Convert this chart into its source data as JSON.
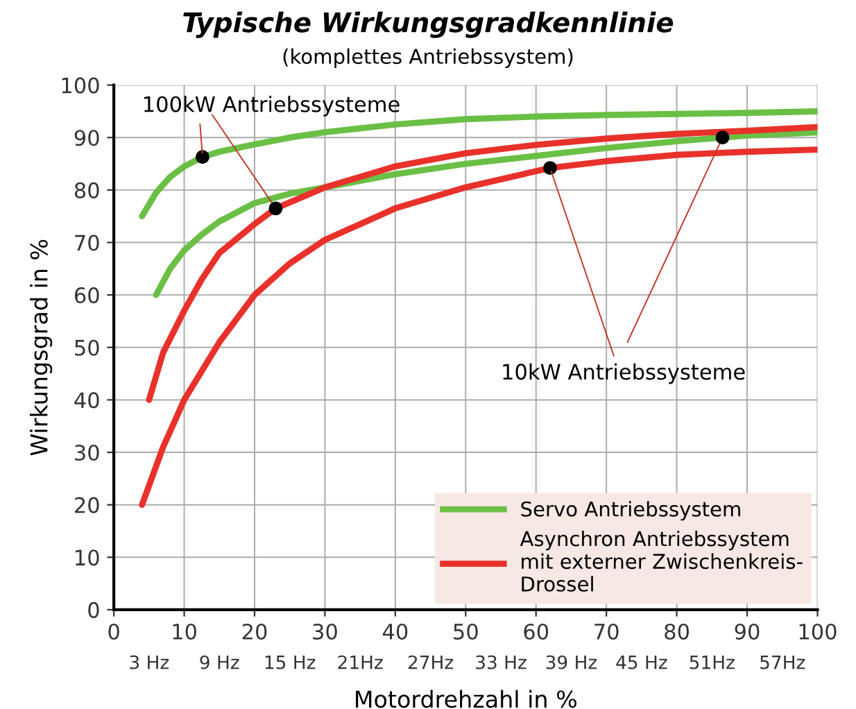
{
  "chart_data": {
    "type": "line",
    "title": "Typische Wirkungsgradkennlinie",
    "subtitle": "(komplettes Antriebssystem)",
    "xlabel": "Motordrehzahl in %",
    "ylabel": "Wirkungsgrad in %",
    "series": [
      {
        "name": "Servo Antriebssystem",
        "color": "#6abf45",
        "x": [
          4,
          6,
          8,
          10,
          12.6,
          15,
          20,
          25,
          30,
          40,
          50,
          60,
          70,
          80,
          90,
          100
        ],
        "values": [
          75,
          79.5,
          82.5,
          84.5,
          86.3,
          87.3,
          88.7,
          90,
          91,
          92.5,
          93.5,
          94,
          94.3,
          94.5,
          94.7,
          95
        ]
      },
      {
        "color": "#6abf45",
        "x": [
          6,
          8,
          10,
          12.5,
          15,
          20,
          25,
          30,
          40,
          50,
          60,
          70,
          80,
          86.5,
          90,
          100
        ],
        "values": [
          60,
          65,
          68.5,
          71.5,
          74,
          77.5,
          79.3,
          80.5,
          83,
          85,
          86.5,
          88,
          89.3,
          90,
          90.4,
          91
        ]
      },
      {
        "name": "Asynchron Antriebssystem\nmit externer Zwischenkreis-\nDrossel",
        "color": "#e8312a",
        "x": [
          5,
          7,
          10,
          12.5,
          15,
          20,
          23,
          30,
          40,
          50,
          60,
          70,
          80,
          90,
          100
        ],
        "values": [
          40,
          49,
          57,
          63,
          68,
          73.5,
          76.5,
          80.5,
          84.5,
          87,
          88.6,
          89.8,
          90.7,
          91.3,
          92
        ]
      },
      {
        "color": "#e8312a",
        "x": [
          4,
          7,
          10,
          15,
          20,
          25,
          30,
          40,
          50,
          62,
          70,
          80,
          90,
          100
        ],
        "values": [
          20,
          31,
          40,
          51,
          60,
          66,
          70.5,
          76.5,
          80.5,
          84.2,
          85.5,
          86.7,
          87.3,
          87.7
        ]
      },
      {
        "type": "scatter",
        "marker": "circle",
        "color": "#000000",
        "x": [
          12.6,
          23,
          62,
          86.5
        ],
        "values": [
          86.3,
          76.5,
          84.2,
          90
        ]
      }
    ],
    "annotations": [
      {
        "text": "100kW Antriebssysteme",
        "x": 12.6,
        "y": 86.3
      },
      {
        "text": "10kW Antriebssysteme",
        "x": 62,
        "y": 84.2
      }
    ],
    "xlim": [
      0,
      100
    ],
    "xticks": [
      0,
      10,
      20,
      30,
      40,
      50,
      60,
      70,
      80,
      90,
      100
    ],
    "x2lim": [
      0,
      60
    ],
    "x2ticks": [
      {
        "value": 3,
        "label": "3 Hz"
      },
      {
        "value": 9,
        "label": "9 Hz"
      },
      {
        "value": 15,
        "label": "15 Hz"
      },
      {
        "value": 21,
        "label": "21Hz"
      },
      {
        "value": 27,
        "label": "27Hz"
      },
      {
        "value": 33,
        "label": "33 Hz"
      },
      {
        "value": 39,
        "label": "39 Hz"
      },
      {
        "value": 45,
        "label": "45 Hz"
      },
      {
        "value": 51,
        "label": "51Hz"
      },
      {
        "value": 57,
        "label": "57Hz"
      }
    ],
    "ylim": [
      0,
      100
    ],
    "yticks": [
      0,
      10,
      20,
      30,
      40,
      50,
      60,
      70,
      80,
      90,
      100
    ],
    "grid": true,
    "legend": "bottom right",
    "marker": "none",
    "line_style": "solid"
  }
}
